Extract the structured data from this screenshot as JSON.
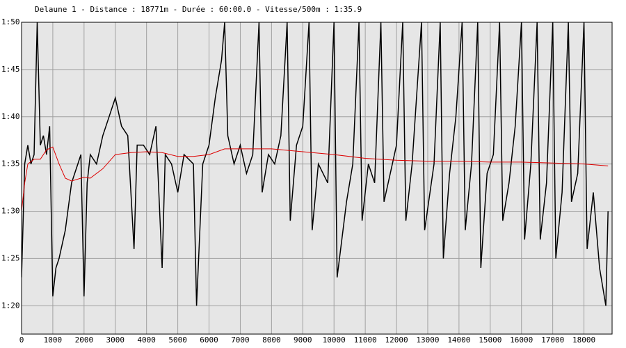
{
  "chart_data": {
    "type": "line",
    "title": "Delaune 1 - Distance : 18771m - Durée : 60:00.0 - Vitesse/500m : 1:35.9",
    "xlim": [
      0,
      18900
    ],
    "xticks": [
      0,
      1000,
      2000,
      3000,
      4000,
      5000,
      6000,
      7000,
      8000,
      9000,
      10000,
      11000,
      12000,
      13000,
      14000,
      15000,
      16000,
      17000,
      18000
    ],
    "ylim": [
      77,
      110
    ],
    "yticks": [
      {
        "value": 80,
        "label": "1:20"
      },
      {
        "value": 85,
        "label": "1:25"
      },
      {
        "value": 90,
        "label": "1:30"
      },
      {
        "value": 95,
        "label": "1:35"
      },
      {
        "value": 100,
        "label": "1:40"
      },
      {
        "value": 105,
        "label": "1:45"
      },
      {
        "value": 110,
        "label": "1:50"
      }
    ],
    "grid": true,
    "series": [
      {
        "color": "#000000",
        "x": [
          0,
          100,
          200,
          300,
          400,
          500,
          600,
          700,
          800,
          900,
          1000,
          1100,
          1200,
          1400,
          1600,
          1800,
          1900,
          2000,
          2100,
          2200,
          2400,
          2600,
          2800,
          3000,
          3200,
          3400,
          3600,
          3700,
          3900,
          4100,
          4300,
          4500,
          4600,
          4800,
          5000,
          5200,
          5500,
          5600,
          5800,
          6000,
          6200,
          6400,
          6500,
          6600,
          6800,
          7000,
          7200,
          7400,
          7600,
          7700,
          7900,
          8100,
          8300,
          8500,
          8600,
          8800,
          9000,
          9200,
          9300,
          9500,
          9800,
          10000,
          10100,
          10400,
          10600,
          10800,
          10900,
          11100,
          11300,
          11500,
          11600,
          11800,
          12000,
          12200,
          12300,
          12500,
          12800,
          12900,
          13200,
          13400,
          13500,
          13700,
          13900,
          14100,
          14200,
          14400,
          14600,
          14700,
          14900,
          15100,
          15300,
          15400,
          15600,
          15800,
          16000,
          16100,
          16300,
          16500,
          16600,
          16800,
          17000,
          17100,
          17300,
          17500,
          17600,
          17800,
          18000,
          18100,
          18300,
          18500,
          18600,
          18700,
          18771
        ],
        "values": [
          83,
          95,
          97,
          95,
          96,
          110,
          97,
          98,
          96,
          99,
          81,
          84,
          85,
          88,
          93,
          95,
          96,
          81,
          93,
          96,
          95,
          98,
          100,
          102,
          99,
          98,
          86,
          97,
          97,
          96,
          99,
          84,
          96,
          95,
          92,
          96,
          95,
          80,
          95,
          97,
          102,
          106,
          110,
          98,
          95,
          97,
          94,
          96,
          110,
          92,
          96,
          95,
          98,
          110,
          89,
          97,
          99,
          110,
          88,
          95,
          93,
          110,
          83,
          91,
          95,
          110,
          89,
          95,
          93,
          110,
          91,
          94,
          97,
          110,
          89,
          95,
          110,
          88,
          95,
          110,
          85,
          94,
          100,
          110,
          88,
          95,
          110,
          84,
          94,
          96,
          110,
          89,
          93,
          99,
          110,
          87,
          95,
          110,
          87,
          93,
          110,
          85,
          92,
          110,
          91,
          94,
          110,
          86,
          92,
          84,
          82,
          80,
          90
        ]
      },
      {
        "color": "#dd0000",
        "x": [
          0,
          100,
          200,
          400,
          600,
          800,
          1000,
          1200,
          1400,
          1600,
          2000,
          2200,
          2600,
          3000,
          3500,
          4000,
          4500,
          5000,
          5500,
          6000,
          6500,
          7000,
          8000,
          9000,
          10000,
          11000,
          12000,
          13000,
          14000,
          15000,
          16000,
          17000,
          18000,
          18771
        ],
        "values": [
          90,
          93,
          95,
          95.5,
          95.5,
          96.5,
          96.8,
          95,
          93.5,
          93.2,
          93.6,
          93.5,
          94.5,
          96,
          96.2,
          96.3,
          96.2,
          95.8,
          95.8,
          96,
          96.6,
          96.6,
          96.6,
          96.3,
          96,
          95.6,
          95.4,
          95.3,
          95.3,
          95.2,
          95.2,
          95.1,
          95,
          94.8
        ]
      }
    ]
  }
}
